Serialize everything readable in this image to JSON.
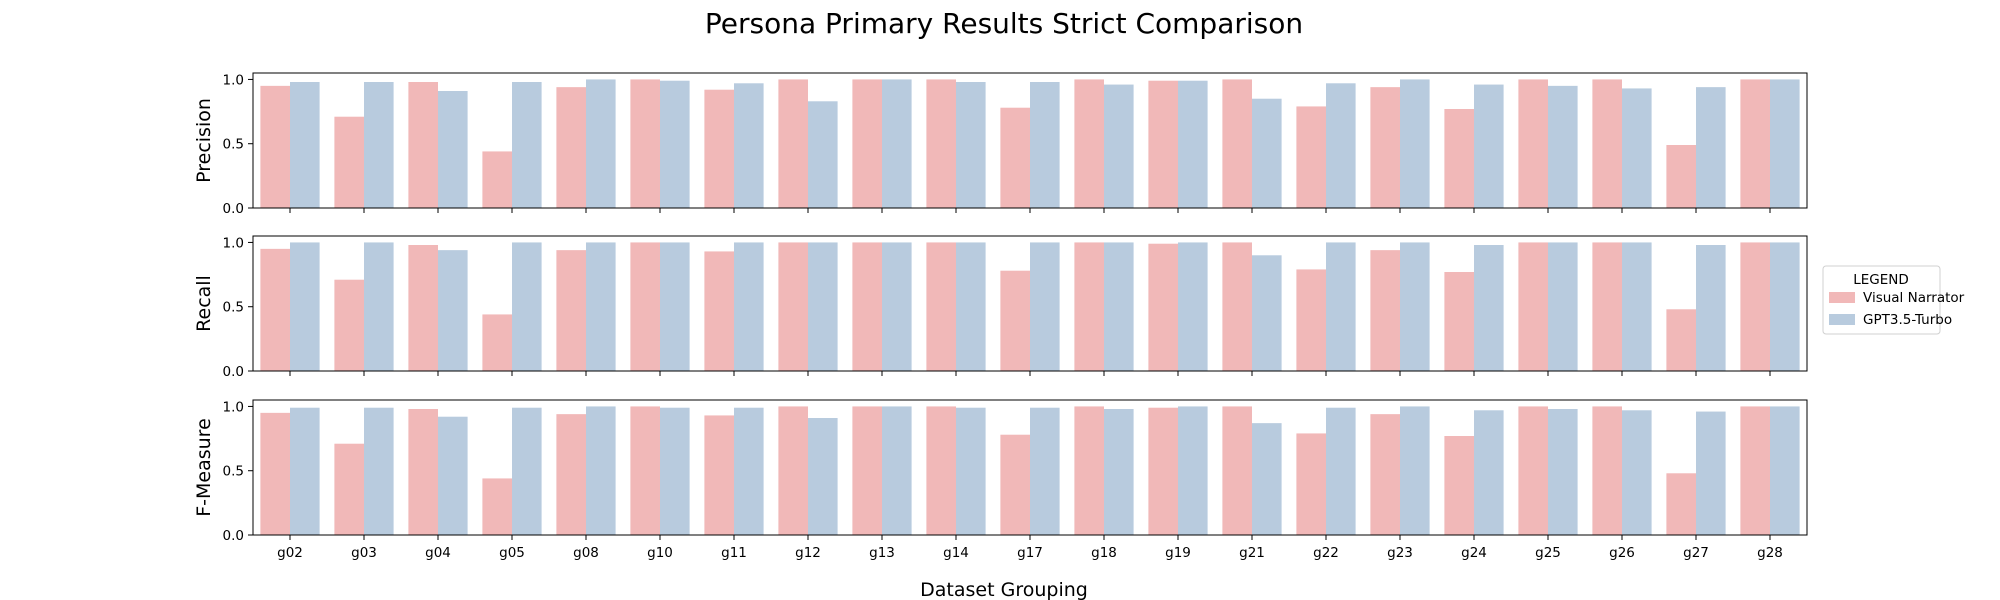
{
  "chart_data": {
    "type": "bar",
    "title": "Persona Primary Results Strict Comparison",
    "xlabel": "Dataset Grouping",
    "categories": [
      "g02",
      "g03",
      "g04",
      "g05",
      "g08",
      "g10",
      "g11",
      "g12",
      "g13",
      "g14",
      "g17",
      "g18",
      "g19",
      "g21",
      "g22",
      "g23",
      "g24",
      "g25",
      "g26",
      "g27",
      "g28"
    ],
    "legend": {
      "title": "LEGEND",
      "placement": "right",
      "entries": [
        "Visual Narrator",
        "GPT3.5-Turbo"
      ]
    },
    "colors": {
      "Visual Narrator": "#f1b8b8",
      "GPT3.5-Turbo": "#b8cbde"
    },
    "grid": false,
    "panels": [
      {
        "ylabel": "Precision",
        "ylim": [
          0,
          1.05
        ],
        "yticks": [
          "0.0",
          "0.5",
          "1.0"
        ],
        "series": [
          {
            "name": "Visual Narrator",
            "values": [
              0.95,
              0.71,
              0.98,
              0.44,
              0.94,
              1.0,
              0.92,
              1.0,
              1.0,
              1.0,
              0.78,
              1.0,
              0.99,
              1.0,
              0.79,
              0.94,
              0.77,
              1.0,
              1.0,
              0.49,
              1.0
            ]
          },
          {
            "name": "GPT3.5-Turbo",
            "values": [
              0.98,
              0.98,
              0.91,
              0.98,
              1.0,
              0.99,
              0.97,
              0.83,
              1.0,
              0.98,
              0.98,
              0.96,
              0.99,
              0.85,
              0.97,
              1.0,
              0.96,
              0.95,
              0.93,
              0.94,
              1.0
            ]
          }
        ]
      },
      {
        "ylabel": "Recall",
        "ylim": [
          0,
          1.05
        ],
        "yticks": [
          "0.0",
          "0.5",
          "1.0"
        ],
        "series": [
          {
            "name": "Visual Narrator",
            "values": [
              0.95,
              0.71,
              0.98,
              0.44,
              0.94,
              1.0,
              0.93,
              1.0,
              1.0,
              1.0,
              0.78,
              1.0,
              0.99,
              1.0,
              0.79,
              0.94,
              0.77,
              1.0,
              1.0,
              0.48,
              1.0
            ]
          },
          {
            "name": "GPT3.5-Turbo",
            "values": [
              1.0,
              1.0,
              0.94,
              1.0,
              1.0,
              1.0,
              1.0,
              1.0,
              1.0,
              1.0,
              1.0,
              1.0,
              1.0,
              0.9,
              1.0,
              1.0,
              0.98,
              1.0,
              1.0,
              0.98,
              1.0
            ]
          }
        ]
      },
      {
        "ylabel": "F-Measure",
        "ylim": [
          0,
          1.05
        ],
        "yticks": [
          "0.0",
          "0.5",
          "1.0"
        ],
        "series": [
          {
            "name": "Visual Narrator",
            "values": [
              0.95,
              0.71,
              0.98,
              0.44,
              0.94,
              1.0,
              0.93,
              1.0,
              1.0,
              1.0,
              0.78,
              1.0,
              0.99,
              1.0,
              0.79,
              0.94,
              0.77,
              1.0,
              1.0,
              0.48,
              1.0
            ]
          },
          {
            "name": "GPT3.5-Turbo",
            "values": [
              0.99,
              0.99,
              0.92,
              0.99,
              1.0,
              0.99,
              0.99,
              0.91,
              1.0,
              0.99,
              0.99,
              0.98,
              1.0,
              0.87,
              0.99,
              1.0,
              0.97,
              0.98,
              0.97,
              0.96,
              1.0
            ]
          }
        ]
      }
    ]
  }
}
